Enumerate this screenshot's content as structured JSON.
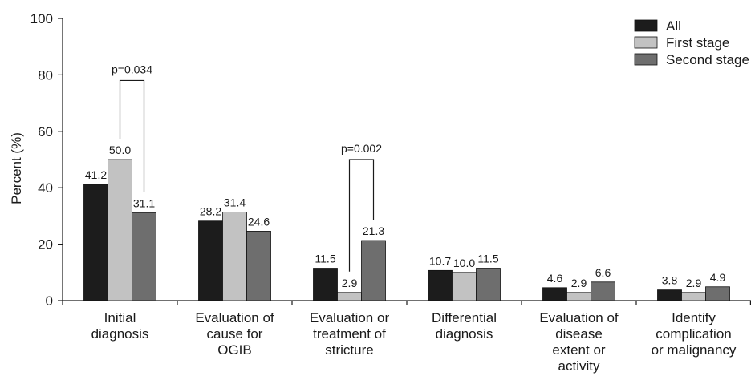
{
  "chart_data": {
    "type": "bar",
    "ylabel": "Percent (%)",
    "xlabel": "",
    "ylim": [
      0,
      100
    ],
    "yticks": [
      0,
      20,
      40,
      60,
      80,
      100
    ],
    "categories": [
      [
        "Initial",
        "diagnosis"
      ],
      [
        "Evaluation of",
        "cause for",
        "OGIB"
      ],
      [
        "Evaluation or",
        "treatment of",
        "stricture"
      ],
      [
        "Differential",
        "diagnosis"
      ],
      [
        "Evaluation of",
        "disease",
        "extent or",
        "activity"
      ],
      [
        "Identify",
        "complication",
        "or malignancy"
      ]
    ],
    "series": [
      {
        "name": "All",
        "color": "#1c1c1c",
        "values": [
          41.2,
          28.2,
          11.5,
          10.7,
          4.6,
          3.8
        ],
        "labels": [
          "41.2",
          "28.2",
          "11.5",
          "10.7",
          "4.6",
          "3.8"
        ]
      },
      {
        "name": "First stage",
        "color": "#c2c2c2",
        "values": [
          50.0,
          31.4,
          2.9,
          10.0,
          2.9,
          2.9
        ],
        "labels": [
          "50.0",
          "31.4",
          "2.9",
          "10.0",
          "2.9",
          "2.9"
        ]
      },
      {
        "name": "Second stage",
        "color": "#6e6e6e",
        "values": [
          31.1,
          24.6,
          21.3,
          11.5,
          6.6,
          4.9
        ],
        "labels": [
          "31.1",
          "24.6",
          "21.3",
          "11.5",
          "6.6",
          "4.9"
        ]
      }
    ],
    "legend_position": "top-right",
    "grid": false,
    "annotations": [
      {
        "text": "p=0.034",
        "category_index": 0,
        "from_series": 1,
        "to_series": 2,
        "bracket_top": 78
      },
      {
        "text": "p=0.002",
        "category_index": 2,
        "from_series": 1,
        "to_series": 2,
        "bracket_top": 50
      }
    ]
  }
}
